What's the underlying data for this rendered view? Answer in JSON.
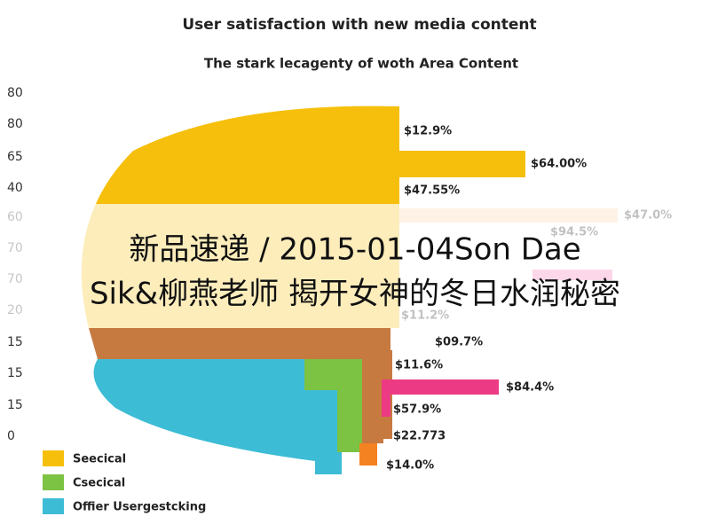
{
  "header": {
    "title": "User satisfaction with new media content",
    "subtitle": "The stark lecagenty of woth Area Content"
  },
  "axis_labels": [
    "80",
    "80",
    "65",
    "40",
    "60",
    "70",
    "70",
    "20",
    "15",
    "15",
    "15",
    "0"
  ],
  "value_labels": [
    "$12.9%",
    "$64.00%",
    "$47.55%",
    "$47.0%",
    "$94.5%",
    "$11.2%",
    "$09.7%",
    "$11.6%",
    "$84.4%",
    "$57.9%",
    "$22.773",
    "$14.0%"
  ],
  "legend": [
    "Seecical",
    "Csecical",
    "Offier Usergestcking"
  ],
  "overlay": [
    "新品速递 / 2015-01-04Son Dae",
    "Sik&柳燕老师 揭开女神的冬日水润秘密"
  ]
}
